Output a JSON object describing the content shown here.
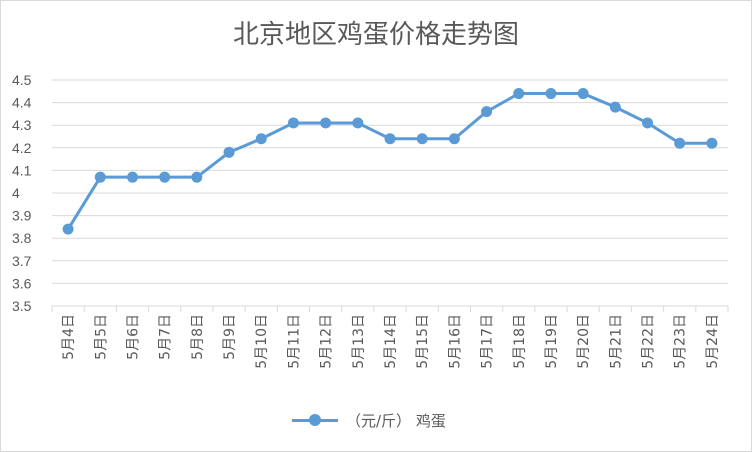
{
  "chart_data": {
    "type": "line",
    "title": "北京地区鸡蛋价格走势图",
    "categories": [
      "5月4日",
      "5月5日",
      "5月6日",
      "5月7日",
      "5月8日",
      "5月9日",
      "5月10日",
      "5月11日",
      "5月12日",
      "5月13日",
      "5月14日",
      "5月15日",
      "5月16日",
      "5月17日",
      "5月18日",
      "5月19日",
      "5月20日",
      "5月21日",
      "5月22日",
      "5月23日",
      "5月24日"
    ],
    "series": [
      {
        "name": "（元/斤） 鸡蛋",
        "color": "#5b9bd5",
        "values": [
          3.84,
          4.07,
          4.07,
          4.07,
          4.07,
          4.18,
          4.24,
          4.31,
          4.31,
          4.31,
          4.24,
          4.24,
          4.24,
          4.36,
          4.44,
          4.44,
          4.44,
          4.38,
          4.31,
          4.22,
          4.22
        ]
      }
    ],
    "ylim": [
      3.5,
      4.5
    ],
    "yticks": [
      "3.5",
      "3.6",
      "3.7",
      "3.8",
      "3.9",
      "4",
      "4.1",
      "4.2",
      "4.3",
      "4.4",
      "4.5"
    ],
    "grid": true,
    "legend": "bottom"
  }
}
